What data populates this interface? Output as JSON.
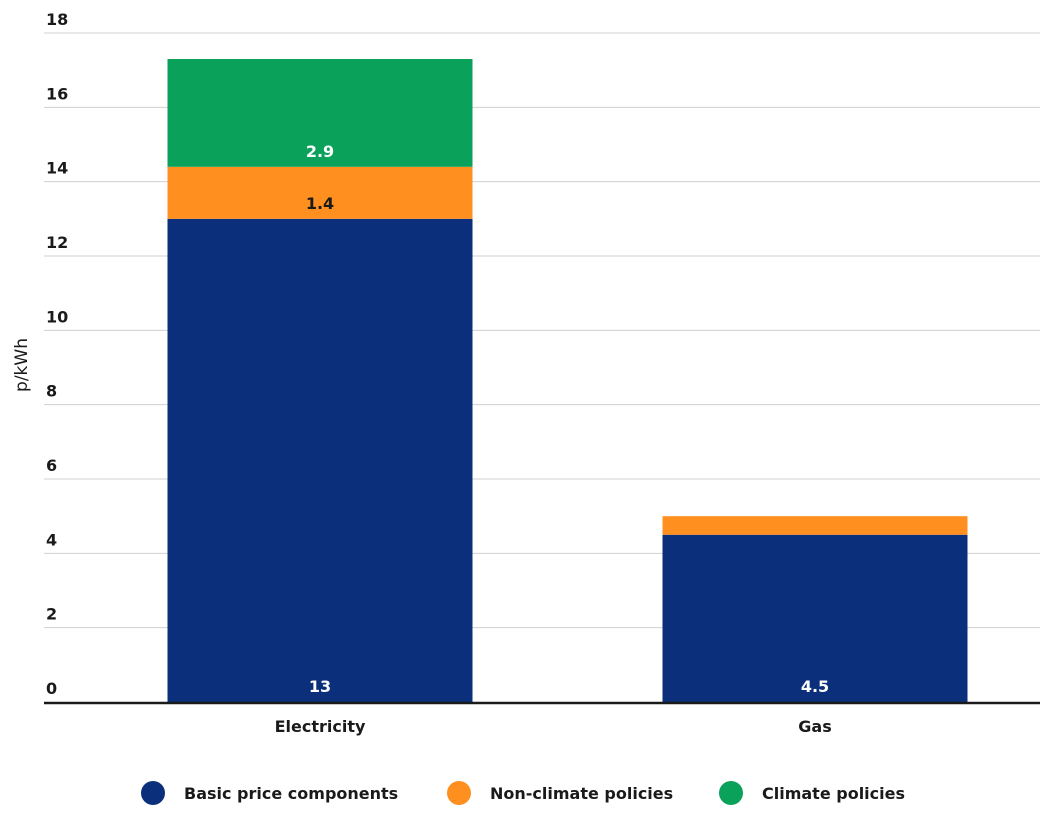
{
  "chart_data": {
    "type": "bar",
    "stacked": true,
    "title": "",
    "xlabel": "",
    "ylabel": "p/kWh",
    "ylim": [
      0,
      18
    ],
    "yticks": [
      0,
      2,
      4,
      6,
      8,
      10,
      12,
      14,
      16,
      18
    ],
    "categories": [
      "Electricity",
      "Gas"
    ],
    "series": [
      {
        "name": "Basic price components",
        "color": "#0b2f7a",
        "values": [
          13,
          4.5
        ],
        "labels": [
          "13",
          "4.5"
        ],
        "label_color": "#ffffff"
      },
      {
        "name": "Non-climate policies",
        "color": "#ff8f1f",
        "values": [
          1.4,
          0.5
        ],
        "labels": [
          "1.4",
          ""
        ],
        "label_color": "#1a1a1a"
      },
      {
        "name": "Climate policies",
        "color": "#0aa15a",
        "values": [
          2.9,
          0
        ],
        "labels": [
          "2.9",
          ""
        ],
        "label_color": "#ffffff"
      }
    ],
    "grid": true,
    "legend_position": "bottom"
  }
}
